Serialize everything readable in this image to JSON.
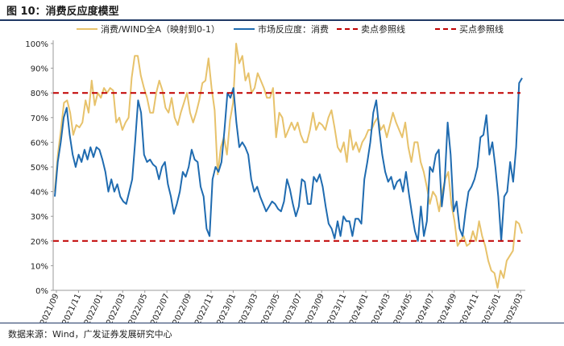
{
  "header": {
    "title": "图 10：消费反应度模型"
  },
  "footer": {
    "source": "数据来源：Wind，广发证券发展研究中心"
  },
  "colors": {
    "consumption": "#E7C26B",
    "reaction": "#1F6BB0",
    "refline": "#C00000",
    "axis": "#999999"
  },
  "chart_data": {
    "type": "line",
    "title": "消费反应度模型",
    "xlabel": "",
    "ylabel": "",
    "ylim": [
      0,
      100
    ],
    "yticks": [
      0,
      10,
      20,
      30,
      40,
      50,
      60,
      70,
      80,
      90,
      100
    ],
    "ytick_labels": [
      "0%",
      "10%",
      "20%",
      "30%",
      "40%",
      "50%",
      "60%",
      "70%",
      "80%",
      "90%",
      "100%"
    ],
    "xtick_labels": [
      "2021/09",
      "2021/11",
      "2022/01",
      "2022/03",
      "2022/05",
      "2022/07",
      "2022/09",
      "2022/11",
      "2023/01",
      "2023/03",
      "2023/05",
      "2023/07",
      "2023/09",
      "2023/11",
      "2024/01",
      "2024/03",
      "2024/05",
      "2024/07",
      "2024/09",
      "2024/11",
      "2025/01",
      "2025/03"
    ],
    "legend_position": "top",
    "series": [
      {
        "name": "消费/WIND全A（映射到0-1）",
        "style": "solid",
        "values": [
          40,
          55,
          65,
          76,
          77,
          72,
          63,
          67,
          66,
          68,
          77,
          72,
          85,
          75,
          80,
          78,
          82,
          80,
          82,
          81,
          68,
          70,
          65,
          68,
          70,
          86,
          95,
          95,
          87,
          82,
          78,
          72,
          72,
          80,
          85,
          81,
          74,
          72,
          78,
          70,
          67,
          72,
          76,
          80,
          72,
          68,
          72,
          77,
          84,
          85,
          94,
          82,
          73,
          47,
          58,
          62,
          55,
          69,
          76,
          100,
          92,
          95,
          85,
          88,
          80,
          82,
          88,
          85,
          82,
          78,
          78,
          82,
          62,
          72,
          70,
          62,
          65,
          68,
          65,
          68,
          63,
          60,
          60,
          65,
          72,
          65,
          68,
          67,
          65,
          70,
          73,
          66,
          58,
          56,
          60,
          52,
          65,
          57,
          60,
          56,
          60,
          62,
          65,
          65,
          68,
          70,
          65,
          67,
          62,
          67,
          72,
          68,
          65,
          62,
          68,
          58,
          52,
          60,
          60,
          52,
          48,
          42,
          35,
          40,
          38,
          32,
          40,
          45,
          48,
          35,
          28,
          18,
          20,
          22,
          18,
          19,
          24,
          20,
          28,
          22,
          18,
          12,
          8,
          7,
          1,
          8,
          5,
          12,
          14,
          16,
          28,
          27,
          23
        ]
      },
      {
        "name": "市场反应度：消费",
        "style": "solid",
        "values": [
          38,
          52,
          60,
          70,
          74,
          63,
          55,
          50,
          55,
          52,
          57,
          53,
          58,
          54,
          58,
          57,
          53,
          48,
          40,
          45,
          40,
          43,
          38,
          36,
          35,
          40,
          45,
          60,
          77,
          72,
          55,
          52,
          53,
          51,
          50,
          45,
          50,
          52,
          43,
          38,
          31,
          35,
          40,
          48,
          46,
          50,
          57,
          53,
          52,
          42,
          38,
          25,
          22,
          45,
          50,
          48,
          52,
          65,
          80,
          78,
          82,
          68,
          58,
          60,
          58,
          55,
          45,
          40,
          42,
          38,
          35,
          32,
          34,
          36,
          35,
          33,
          32,
          36,
          45,
          41,
          35,
          30,
          34,
          45,
          44,
          35,
          35,
          46,
          44,
          47,
          42,
          34,
          27,
          25,
          21,
          28,
          22,
          30,
          28,
          28,
          22,
          29,
          29,
          27,
          45,
          52,
          60,
          72,
          77,
          65,
          55,
          48,
          44,
          46,
          41,
          44,
          45,
          40,
          48,
          39,
          31,
          24,
          20,
          34,
          22,
          28,
          50,
          48,
          55,
          57,
          34,
          44,
          68,
          55,
          32,
          36,
          25,
          22,
          32,
          40,
          42,
          45,
          50,
          62,
          63,
          71,
          55,
          60,
          50,
          38,
          20,
          38,
          40,
          52,
          44,
          58,
          84,
          86
        ]
      },
      {
        "name": "卖点参照线",
        "style": "dashed",
        "value": 80
      },
      {
        "name": "买点参照线",
        "style": "dashed",
        "value": 20
      }
    ]
  }
}
